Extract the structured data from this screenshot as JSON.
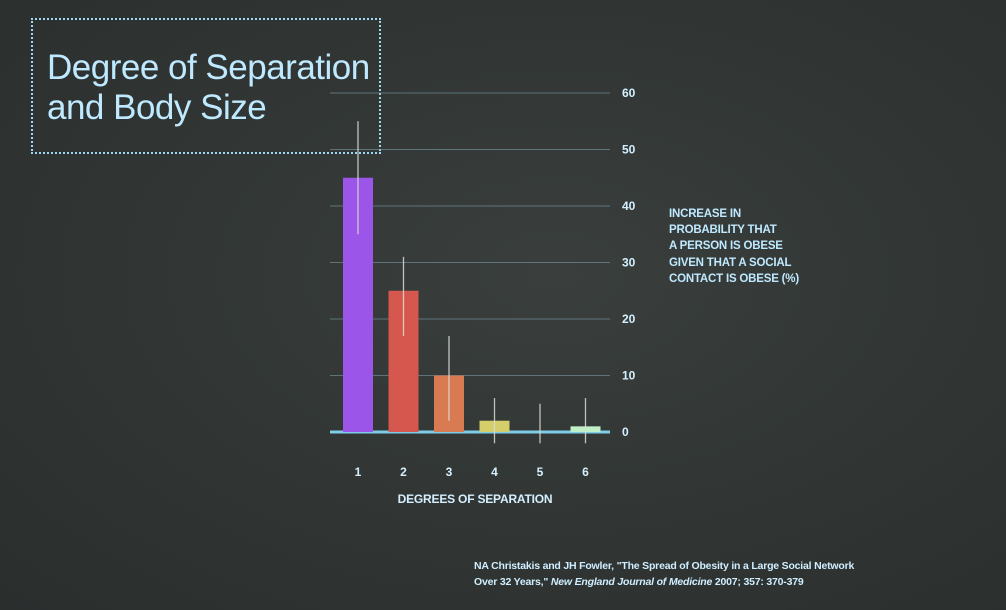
{
  "title_lines": [
    "Degree of Separation",
    "and Body Size"
  ],
  "ylabel_lines": [
    "INCREASE IN",
    "PROBABILITY THAT",
    "A PERSON IS OBESE",
    "GIVEN THAT A SOCIAL",
    "CONTACT IS OBESE (%)"
  ],
  "citation": {
    "line1": "NA Christakis and JH Fowler, \"The Spread of Obesity in a Large Social Network",
    "line2_start": "Over 32 Years,\"",
    "journal": "New England Journal of Medicine",
    "line2_end": "2007; 357: 370-379"
  },
  "chart_data": {
    "type": "bar",
    "categories": [
      "1",
      "2",
      "3",
      "4",
      "5",
      "6"
    ],
    "values": [
      45,
      25,
      10,
      2,
      0,
      1
    ],
    "error_bars": [
      [
        35,
        55
      ],
      [
        17,
        31
      ],
      [
        2,
        17
      ],
      [
        -2,
        6
      ],
      [
        -2,
        5
      ],
      [
        -2,
        6
      ]
    ],
    "bar_colors": [
      "#9b55e8",
      "#d6574d",
      "#d87b52",
      "#d4cf6a",
      "#a6a3a0",
      "#bff0c8"
    ],
    "xlabel": "DEGREES OF SEPARATION",
    "ylabel": "INCREASE IN PROBABILITY THAT A PERSON IS OBESE GIVEN THAT A SOCIAL CONTACT IS OBESE (%)",
    "ylim": [
      0,
      60
    ],
    "yticks": [
      0,
      10,
      20,
      30,
      40,
      50,
      60
    ],
    "y_axis_side": "right",
    "grid": true
  },
  "colors": {
    "title_text": "#bfe9ff",
    "title_border": "#9fd8f2",
    "gridline": "#7fa3b4",
    "baseline": "#7fcde8",
    "errorbar": "#dcdcd2"
  }
}
